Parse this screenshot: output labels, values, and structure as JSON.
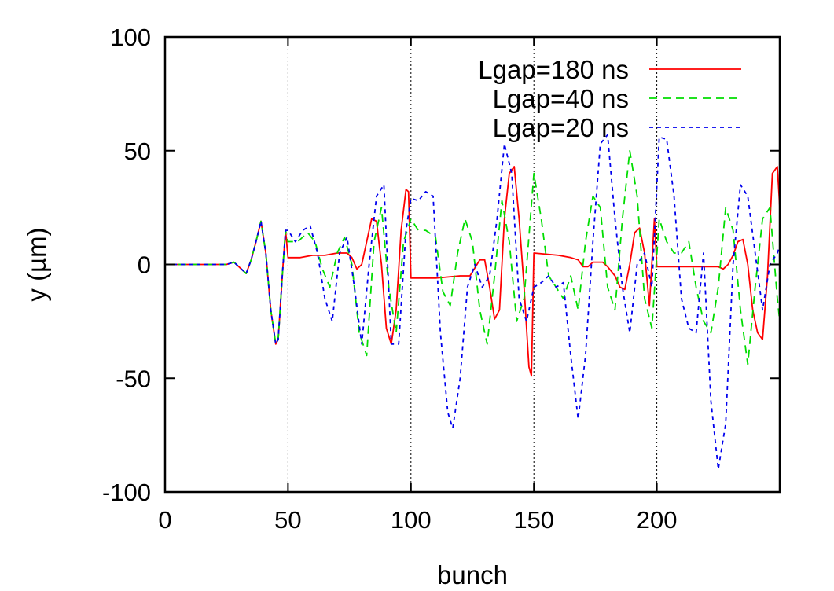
{
  "chart_data": {
    "type": "line",
    "title": "",
    "xlabel": "bunch",
    "ylabel": "y (µm)",
    "xlim": [
      0,
      250
    ],
    "ylim": [
      -100,
      100
    ],
    "xticks": [
      0,
      50,
      100,
      150,
      200
    ],
    "yticks": [
      -100,
      -50,
      0,
      50,
      100
    ],
    "xtick_labels": [
      "0",
      "50",
      "100",
      "150",
      "200"
    ],
    "ytick_labels": [
      "-100",
      "-50",
      "0",
      "50",
      "100"
    ],
    "vlines": [
      50,
      100,
      150,
      200
    ],
    "grid": false,
    "legend_position": "top-right",
    "series": [
      {
        "name": "Lgap=180 ns",
        "color": "#ff0000",
        "dash": "solid",
        "x": [
          0,
          25,
          28,
          31,
          33,
          35,
          37,
          39,
          41,
          43,
          45,
          46,
          48,
          49,
          50,
          55,
          60,
          65,
          70,
          74,
          76,
          78,
          80,
          82,
          84,
          86,
          88,
          90,
          92,
          94,
          96,
          98,
          99,
          100,
          110,
          120,
          124,
          128,
          130,
          132,
          134,
          136,
          138,
          140,
          142,
          144,
          146,
          148,
          149,
          150,
          160,
          165,
          168,
          170,
          172,
          174,
          178,
          180,
          183,
          185,
          187,
          189,
          191,
          193,
          195,
          197,
          199,
          200,
          215,
          225,
          227,
          229,
          231,
          233,
          235,
          237,
          239,
          241,
          243,
          245,
          247,
          249,
          250
        ],
        "y": [
          0,
          0,
          1,
          -2,
          -4,
          2,
          10,
          19,
          5,
          -20,
          -35,
          -33,
          0,
          15,
          3,
          3,
          4,
          4,
          5,
          5,
          3,
          -2,
          0,
          10,
          20,
          19,
          0,
          -28,
          -35,
          -20,
          15,
          33,
          32,
          -6,
          -6,
          -5,
          -5,
          2,
          2,
          -10,
          -24,
          -20,
          20,
          40,
          43,
          20,
          -10,
          -45,
          -49,
          5,
          4,
          3,
          2,
          -1,
          -1,
          1,
          1,
          -1,
          -5,
          -10,
          -11,
          0,
          14,
          16,
          5,
          -18,
          20,
          -1,
          -1,
          -1,
          -2,
          0,
          4,
          10,
          11,
          0,
          -20,
          -30,
          -33,
          -5,
          40,
          43,
          25
        ]
      },
      {
        "name": "Lgap=40 ns",
        "color": "#00dd00",
        "dash": "10,7",
        "x": [
          0,
          25,
          28,
          31,
          33,
          35,
          37,
          39,
          41,
          43,
          45,
          46,
          48,
          49,
          50,
          54,
          58,
          61,
          64,
          67,
          70,
          73,
          76,
          79,
          82,
          85,
          88,
          91,
          94,
          97,
          100,
          103,
          106,
          110,
          113,
          116,
          119,
          122,
          125,
          128,
          131,
          134,
          137,
          140,
          143,
          146,
          150,
          153,
          156,
          159,
          162,
          165,
          168,
          171,
          174,
          177,
          180,
          183,
          186,
          189,
          192,
          195,
          198,
          201,
          204,
          207,
          210,
          213,
          216,
          219,
          222,
          225,
          228,
          231,
          234,
          237,
          240,
          243,
          246,
          249,
          250
        ],
        "y": [
          0,
          0,
          1,
          -2,
          -4,
          2,
          10,
          19,
          5,
          -20,
          -35,
          -33,
          0,
          15,
          10,
          10,
          14,
          10,
          -2,
          -10,
          5,
          12,
          0,
          -30,
          -40,
          10,
          25,
          -10,
          -30,
          10,
          20,
          15,
          15,
          12,
          -12,
          -18,
          5,
          20,
          10,
          -20,
          -35,
          -5,
          28,
          10,
          -25,
          -15,
          40,
          20,
          -5,
          -10,
          -15,
          -5,
          -20,
          10,
          30,
          25,
          -10,
          -20,
          20,
          50,
          30,
          -15,
          -28,
          20,
          10,
          5,
          5,
          10,
          -10,
          -25,
          -30,
          -10,
          25,
          15,
          -20,
          -44,
          -10,
          20,
          25,
          -15,
          -25
        ]
      },
      {
        "name": "Lgap=20 ns",
        "color": "#0000ee",
        "dash": "5,5",
        "x": [
          0,
          25,
          28,
          31,
          33,
          35,
          37,
          39,
          41,
          43,
          45,
          46,
          48,
          49,
          50,
          53,
          56,
          59,
          62,
          65,
          68,
          71,
          74,
          77,
          80,
          83,
          86,
          89,
          92,
          95,
          98,
          100,
          103,
          106,
          109,
          112,
          115,
          117,
          120,
          123,
          126,
          129,
          132,
          135,
          138,
          141,
          144,
          147,
          150,
          153,
          156,
          159,
          162,
          165,
          168,
          171,
          174,
          177,
          180,
          183,
          186,
          189,
          192,
          195,
          198,
          201,
          204,
          207,
          210,
          213,
          216,
          219,
          222,
          225,
          228,
          231,
          234,
          237,
          240,
          243,
          246,
          249,
          250
        ],
        "y": [
          0,
          0,
          1,
          -2,
          -4,
          2,
          10,
          19,
          5,
          -20,
          -35,
          -33,
          0,
          15,
          15,
          10,
          15,
          17,
          5,
          -15,
          -25,
          5,
          12,
          -10,
          -35,
          0,
          30,
          35,
          -35,
          -35,
          15,
          29,
          28,
          32,
          30,
          -30,
          -65,
          -72,
          -50,
          -10,
          0,
          -10,
          -5,
          20,
          53,
          40,
          -15,
          -25,
          -10,
          -8,
          -5,
          -10,
          -8,
          -40,
          -68,
          -40,
          10,
          53,
          57,
          20,
          -10,
          -30,
          0,
          5,
          -10,
          56,
          55,
          30,
          -15,
          -28,
          -30,
          5,
          -60,
          -90,
          -70,
          0,
          35,
          30,
          5,
          -20,
          0,
          5,
          8
        ]
      }
    ]
  }
}
